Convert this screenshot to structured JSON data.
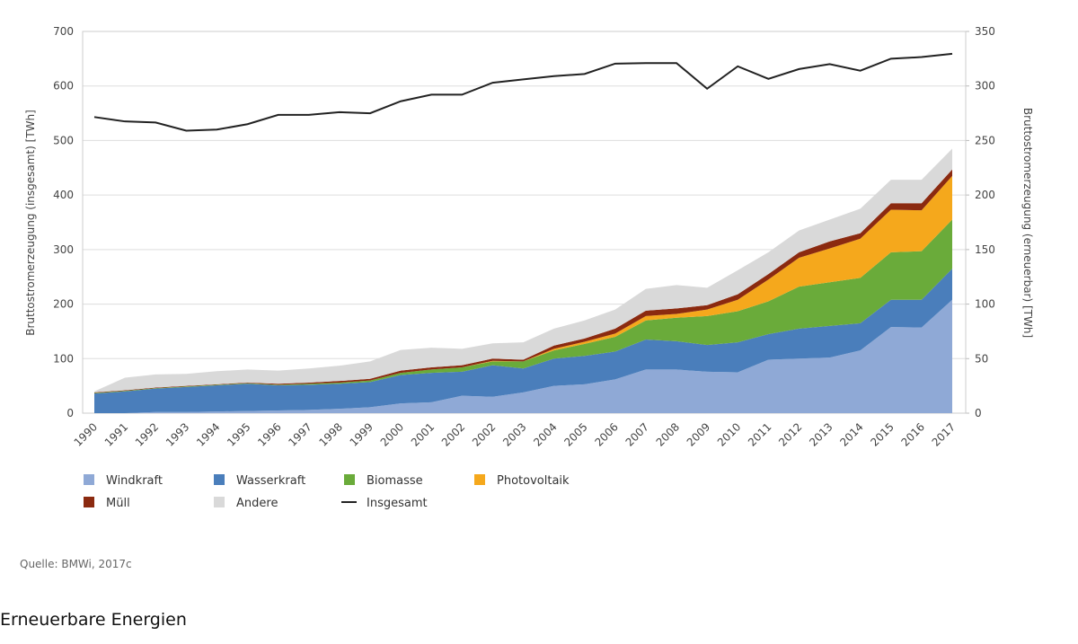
{
  "chart_data": {
    "type": "stacked_area_line",
    "ylabel": "Bruttostromerzeugung (insgesamt) [TWh]",
    "y2label": "Bruttostromerzeugung (erneuerbar) [TWh]",
    "categories": [
      "1990",
      "1991",
      "1992",
      "1993",
      "1994",
      "1995",
      "1996",
      "1997",
      "1998",
      "1999",
      "2000",
      "2001",
      "2002",
      "2002",
      "2003",
      "2004",
      "2005",
      "2006",
      "2007",
      "2008",
      "2009",
      "2010",
      "2011",
      "2012",
      "2013",
      "2014",
      "2015",
      "2016",
      "2017"
    ],
    "ylim": [
      0,
      700
    ],
    "yticks": [
      0,
      100,
      200,
      300,
      400,
      500,
      600,
      700
    ],
    "y2lim": [
      0,
      350
    ],
    "y2ticks": [
      0,
      50,
      100,
      150,
      200,
      250,
      300,
      350
    ],
    "grid": true,
    "series": [
      {
        "name": "Windkraft",
        "color": "#8fa9d6",
        "axis": "y2",
        "values": [
          0,
          0,
          1,
          1,
          1.5,
          2,
          2.5,
          3,
          4,
          5.5,
          9,
          10,
          16,
          15,
          19,
          25,
          26.5,
          31,
          40,
          40,
          38,
          37.5,
          49,
          50,
          51,
          57.5,
          79,
          78.5,
          104
        ]
      },
      {
        "name": "Wasserkraft",
        "color": "#4a7ebb",
        "axis": "y2",
        "values": [
          18,
          20,
          21.5,
          23,
          24,
          25,
          23,
          23,
          23,
          23,
          26,
          27,
          22,
          29,
          22,
          25,
          26,
          25.5,
          27.5,
          26,
          24.5,
          27.5,
          23.5,
          27.5,
          29,
          25,
          25,
          25.5,
          28.5
        ]
      },
      {
        "name": "Biomasse",
        "color": "#6aab3a",
        "axis": "y2",
        "values": [
          0.5,
          0.5,
          0.5,
          0.5,
          0.5,
          0.5,
          0.5,
          1,
          1,
          1.5,
          2,
          3,
          4,
          3.5,
          6.5,
          7.5,
          11,
          13.5,
          17.5,
          21.5,
          26.5,
          28.5,
          30,
          38.5,
          40,
          41.5,
          43.5,
          44.5,
          45
        ]
      },
      {
        "name": "Photovoltaik",
        "color": "#f5a81c",
        "axis": "y2",
        "values": [
          0,
          0,
          0,
          0,
          0,
          0,
          0,
          0,
          0,
          0,
          0,
          0,
          0,
          0.5,
          0,
          1.5,
          2,
          3,
          4,
          3.5,
          6,
          10.5,
          20,
          26.5,
          31,
          36,
          39,
          37.5,
          40
        ]
      },
      {
        "name": "Müll",
        "color": "#8b2a10",
        "axis": "y2",
        "values": [
          0.5,
          0.5,
          0.5,
          0.5,
          0.5,
          0.5,
          1,
          1,
          1.5,
          1.5,
          2,
          2,
          2,
          2,
          1.5,
          3,
          3,
          4.5,
          5,
          5,
          4,
          5,
          5,
          5,
          6.5,
          5,
          6,
          6.5,
          6
        ]
      },
      {
        "name": "Andere",
        "color": "#d9d9d9",
        "axis": "y2",
        "values": [
          1,
          11.5,
          12,
          11,
          12,
          12,
          12,
          13,
          14,
          16,
          19,
          18,
          15,
          14,
          16,
          15.5,
          16.5,
          17.5,
          20,
          21.5,
          16,
          22,
          20,
          20,
          20,
          22.5,
          21.5,
          21.5,
          19
        ]
      },
      {
        "name": "Insgesamt",
        "color": "#222222",
        "type": "line",
        "values": [
          543,
          535,
          533,
          518,
          520,
          530,
          547,
          547,
          552,
          550,
          572,
          584,
          584,
          606,
          612,
          618,
          622,
          641,
          642,
          642,
          595,
          636,
          613,
          631,
          640,
          628,
          650,
          653,
          659
        ]
      }
    ],
    "source": "Quelle: BMWi, 2017c",
    "caption": "Erneuerbare Energien"
  }
}
